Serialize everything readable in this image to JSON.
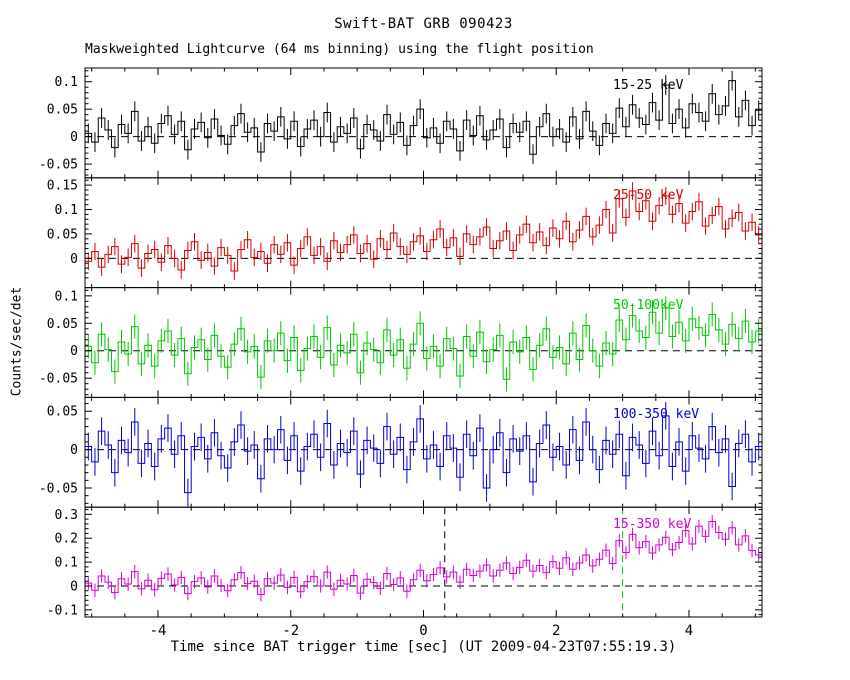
{
  "chart_data": {
    "type": "line",
    "title": "Swift-BAT GRB 090423",
    "subtitle": "Maskweighted Lightcurve (64 ms binning) using the flight position",
    "xlabel": "Time since BAT trigger time [sec] (UT 2009-04-23T07:55:19.3)",
    "ylabel": "Counts/sec/det",
    "xlim": [
      -5.1,
      5.1
    ],
    "xticks": [
      -4,
      -2,
      0,
      2,
      4
    ],
    "x_minor_step": 0.5,
    "x_start": -5.05,
    "x_step": 0.1,
    "background": "#ffffff",
    "frame_color": "#000000",
    "panels": [
      {
        "label": "15-25 keV",
        "color": "#000000",
        "ylim": [
          -0.075,
          0.125
        ],
        "yticks": [
          -0.05,
          0,
          0.05,
          0.1
        ],
        "y_minor_step": 0.01,
        "err": 0.018,
        "values": [
          0.006,
          -0.01,
          0.034,
          0.012,
          -0.02,
          0.022,
          0.006,
          0.046,
          -0.008,
          0.018,
          -0.012,
          0.024,
          0.038,
          0.004,
          0.028,
          -0.024,
          0.014,
          0.026,
          -0.002,
          0.032,
          0.002,
          -0.014,
          0.02,
          0.042,
          0.008,
          0.016,
          -0.028,
          0.024,
          0.01,
          0.036,
          -0.004,
          0.028,
          -0.018,
          0.014,
          0.03,
          0.0,
          0.044,
          -0.01,
          0.018,
          0.006,
          0.034,
          -0.022,
          0.022,
          0.012,
          -0.008,
          0.04,
          0.004,
          0.026,
          -0.016,
          0.02,
          0.05,
          -0.002,
          0.016,
          -0.012,
          0.028,
          0.014,
          -0.026,
          0.03,
          0.002,
          0.038,
          -0.006,
          0.012,
          0.032,
          -0.02,
          0.024,
          0.008,
          0.028,
          -0.032,
          0.018,
          0.042,
          0.0,
          0.014,
          -0.01,
          0.036,
          -0.004,
          0.046,
          0.01,
          -0.016,
          0.024,
          0.006,
          0.052,
          0.018,
          0.058,
          0.034,
          0.022,
          0.062,
          0.03,
          0.094,
          0.024,
          0.05,
          0.016,
          0.06,
          0.044,
          0.028,
          0.078,
          0.04,
          0.056,
          0.102,
          0.036,
          0.066,
          0.02,
          0.048
        ]
      },
      {
        "label": "25-50 keV",
        "color": "#d40000",
        "ylim": [
          -0.06,
          0.165
        ],
        "yticks": [
          0,
          0.05,
          0.1,
          0.15
        ],
        "y_minor_step": 0.01,
        "err": 0.018,
        "values": [
          -0.006,
          0.014,
          -0.018,
          0.008,
          0.024,
          -0.012,
          0.002,
          0.03,
          -0.02,
          0.01,
          0.018,
          -0.008,
          0.026,
          0.0,
          -0.024,
          0.016,
          0.034,
          -0.004,
          0.012,
          -0.016,
          0.022,
          0.006,
          -0.026,
          0.018,
          0.038,
          0.002,
          0.014,
          -0.01,
          0.028,
          0.008,
          0.032,
          -0.014,
          0.02,
          0.044,
          0.006,
          0.024,
          -0.006,
          0.036,
          0.012,
          0.028,
          0.048,
          0.01,
          0.03,
          -0.002,
          0.04,
          0.018,
          0.052,
          0.024,
          0.008,
          0.034,
          0.046,
          0.014,
          0.038,
          0.06,
          0.022,
          0.042,
          0.004,
          0.05,
          0.028,
          0.044,
          0.064,
          0.02,
          0.036,
          0.056,
          0.016,
          0.048,
          0.07,
          0.032,
          0.054,
          0.026,
          0.062,
          0.04,
          0.076,
          0.034,
          0.058,
          0.086,
          0.044,
          0.068,
          0.1,
          0.052,
          0.122,
          0.084,
          0.138,
          0.096,
          0.118,
          0.076,
          0.108,
          0.128,
          0.09,
          0.112,
          0.072,
          0.096,
          0.116,
          0.066,
          0.088,
          0.106,
          0.06,
          0.082,
          0.094,
          0.056,
          0.074,
          0.048
        ]
      },
      {
        "label": "50-100keV",
        "color": "#00c800",
        "ylim": [
          -0.085,
          0.115
        ],
        "yticks": [
          -0.05,
          0,
          0.05,
          0.1
        ],
        "y_minor_step": 0.01,
        "err": 0.022,
        "values": [
          0.008,
          -0.022,
          0.03,
          0.002,
          -0.038,
          0.016,
          -0.006,
          0.044,
          -0.024,
          0.01,
          -0.028,
          0.018,
          0.036,
          -0.008,
          0.022,
          -0.042,
          0.006,
          0.02,
          -0.016,
          0.028,
          -0.01,
          -0.03,
          0.012,
          0.04,
          -0.002,
          0.008,
          -0.048,
          0.018,
          0.0,
          0.032,
          -0.018,
          0.024,
          -0.036,
          0.004,
          0.026,
          -0.012,
          0.042,
          -0.026,
          0.01,
          -0.004,
          0.03,
          -0.04,
          0.014,
          0.002,
          -0.022,
          0.038,
          -0.008,
          0.02,
          -0.032,
          0.012,
          0.05,
          -0.014,
          0.008,
          -0.028,
          0.022,
          0.004,
          -0.046,
          0.026,
          -0.01,
          0.034,
          -0.02,
          0.002,
          0.028,
          -0.052,
          0.016,
          -0.002,
          0.024,
          -0.034,
          0.01,
          0.04,
          -0.012,
          0.006,
          -0.024,
          0.032,
          -0.016,
          0.046,
          0.0,
          -0.028,
          0.014,
          -0.006,
          0.056,
          0.02,
          0.064,
          0.036,
          0.024,
          0.07,
          0.032,
          0.078,
          0.026,
          0.052,
          0.018,
          0.058,
          0.042,
          0.028,
          0.066,
          0.038,
          0.012,
          0.048,
          0.022,
          0.054,
          0.016,
          0.036
        ]
      },
      {
        "label": "100-350 keV",
        "color": "#0000d0",
        "ylim": [
          -0.075,
          0.068
        ],
        "yticks": [
          -0.05,
          0,
          0.05
        ],
        "y_minor_step": 0.01,
        "err": 0.018,
        "values": [
          0.004,
          -0.016,
          0.024,
          0.006,
          -0.03,
          0.012,
          -0.004,
          0.036,
          -0.018,
          0.008,
          -0.022,
          0.014,
          0.028,
          -0.006,
          0.018,
          -0.056,
          0.004,
          0.016,
          -0.012,
          0.022,
          -0.008,
          -0.024,
          0.01,
          0.032,
          -0.002,
          0.006,
          -0.038,
          0.014,
          0.0,
          0.026,
          -0.014,
          0.018,
          -0.028,
          0.004,
          0.02,
          -0.01,
          0.034,
          -0.02,
          0.008,
          -0.004,
          0.024,
          -0.032,
          0.012,
          0.002,
          -0.018,
          0.03,
          -0.006,
          0.016,
          -0.026,
          0.01,
          0.04,
          -0.012,
          0.006,
          -0.022,
          0.018,
          0.002,
          -0.036,
          0.02,
          -0.008,
          0.028,
          -0.05,
          0.0,
          0.022,
          -0.03,
          0.014,
          -0.002,
          0.018,
          -0.042,
          0.008,
          0.032,
          -0.01,
          0.004,
          -0.02,
          0.026,
          -0.014,
          0.036,
          0.0,
          -0.026,
          0.012,
          -0.006,
          0.02,
          -0.034,
          0.016,
          0.006,
          -0.018,
          0.024,
          -0.008,
          0.044,
          -0.022,
          0.01,
          -0.028,
          0.018,
          0.002,
          -0.012,
          0.03,
          -0.004,
          0.014,
          -0.048,
          0.008,
          0.02,
          -0.016,
          0.004
        ]
      },
      {
        "label": "15-350 keV",
        "color": "#d400d4",
        "ylim": [
          -0.13,
          0.33
        ],
        "yticks": [
          -0.1,
          0,
          0.1,
          0.2,
          0.3
        ],
        "y_minor_step": 0.02,
        "err": 0.028,
        "vlines": [
          {
            "x": 0.32,
            "color": "#000000"
          },
          {
            "x": 3.0,
            "color": "#00c800"
          }
        ],
        "values": [
          0.012,
          -0.018,
          0.042,
          0.016,
          -0.028,
          0.03,
          0.008,
          0.06,
          -0.012,
          0.024,
          -0.016,
          0.032,
          0.05,
          0.004,
          0.036,
          -0.032,
          0.018,
          0.034,
          -0.004,
          0.042,
          0.002,
          -0.02,
          0.026,
          0.056,
          0.01,
          0.02,
          -0.036,
          0.03,
          0.012,
          0.046,
          -0.006,
          0.036,
          -0.024,
          0.018,
          0.04,
          0.0,
          0.058,
          -0.014,
          0.024,
          0.008,
          0.044,
          -0.03,
          0.028,
          0.014,
          -0.01,
          0.052,
          0.006,
          0.034,
          -0.022,
          0.026,
          0.066,
          0.022,
          0.048,
          0.076,
          0.038,
          0.058,
          0.016,
          0.07,
          0.044,
          0.062,
          0.088,
          0.042,
          0.066,
          0.096,
          0.052,
          0.078,
          0.108,
          0.062,
          0.086,
          0.056,
          0.102,
          0.074,
          0.118,
          0.07,
          0.096,
          0.13,
          0.084,
          0.112,
          0.15,
          0.094,
          0.19,
          0.14,
          0.216,
          0.16,
          0.186,
          0.138,
          0.172,
          0.204,
          0.152,
          0.182,
          0.232,
          0.176,
          0.25,
          0.208,
          0.27,
          0.224,
          0.196,
          0.244,
          0.172,
          0.21,
          0.148,
          0.13
        ]
      }
    ]
  }
}
